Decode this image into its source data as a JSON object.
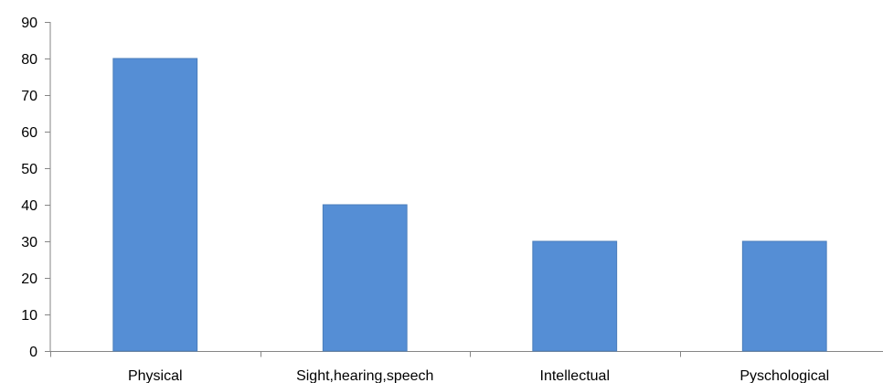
{
  "chart_data": {
    "type": "bar",
    "categories": [
      "Physical",
      "Sight,hearing,speech",
      "Intellectual",
      "Pyschological"
    ],
    "values": [
      80,
      40,
      30,
      30
    ],
    "ylim": [
      0,
      90
    ],
    "yticks": [
      0,
      10,
      20,
      30,
      40,
      50,
      60,
      70,
      80,
      90
    ],
    "grid": false,
    "legend": "none",
    "bar_color": "#558ed5",
    "bar_edge_color": "#4a7ebb",
    "axis_color": "#868686"
  }
}
